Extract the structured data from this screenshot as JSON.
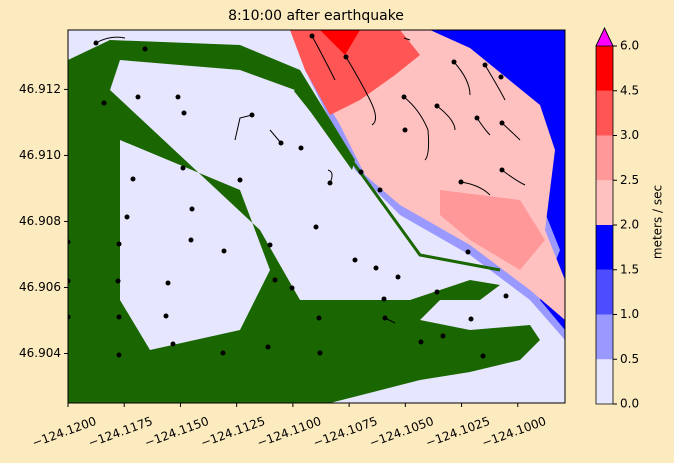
{
  "chart_data": {
    "type": "contour",
    "title": "8:10:00 after earthquake",
    "xlim": [
      -124.12,
      -124.0979
    ],
    "ylim": [
      46.9025,
      46.9138
    ],
    "xticks": [
      {
        "value": -124.12,
        "label": "−124.1200"
      },
      {
        "value": -124.1175,
        "label": "−124.1175"
      },
      {
        "value": -124.115,
        "label": "−124.1150"
      },
      {
        "value": -124.1125,
        "label": "−124.1125"
      },
      {
        "value": -124.11,
        "label": "−124.1100"
      },
      {
        "value": -124.1075,
        "label": "−124.1075"
      },
      {
        "value": -124.105,
        "label": "−124.1050"
      },
      {
        "value": -124.1025,
        "label": "−124.1025"
      },
      {
        "value": -124.1,
        "label": "−124.1000"
      }
    ],
    "yticks": [
      46.904,
      46.906,
      46.908,
      {
        "value": 46.91,
        "label": "46.910"
      },
      46.912
    ],
    "colorbar": {
      "label": "meters / sec",
      "ticks": [
        {
          "value": 0,
          "label": "0.0"
        },
        {
          "value": 0.5,
          "label": "0.5"
        },
        {
          "value": 1,
          "label": "1.0"
        },
        {
          "value": 1.5,
          "label": "1.5"
        },
        {
          "value": 2,
          "label": "2.0"
        },
        {
          "value": 2.5,
          "label": "2.5"
        },
        {
          "value": 3,
          "label": "3.0"
        },
        {
          "value": 4.5,
          "label": "4.5"
        },
        {
          "value": 6,
          "label": "6.0"
        }
      ],
      "colors": [
        "#e6e6ff",
        "#9999ff",
        "#4d4dff",
        "#0000ff",
        "#ffc0c0",
        "#ff9999",
        "#ff5555",
        "#ff0000"
      ],
      "extend_color": "#ff00ff"
    }
  }
}
